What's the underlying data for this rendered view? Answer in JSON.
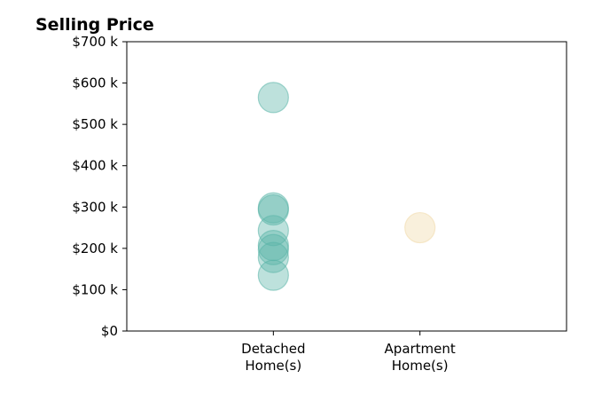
{
  "chart_data": {
    "type": "scatter",
    "title": "Selling Price",
    "xlabel": "",
    "ylabel": "",
    "categories": [
      {
        "label_lines": [
          "Detached",
          "Home(s)"
        ],
        "color": "#5ab4a8"
      },
      {
        "label_lines": [
          "Apartment",
          "Home(s)"
        ],
        "color": "#f0d9a8"
      }
    ],
    "x_range": [
      -1,
      2
    ],
    "ylim": [
      0,
      700000
    ],
    "y_ticks": [
      0,
      100000,
      200000,
      300000,
      400000,
      500000,
      600000,
      700000
    ],
    "y_tick_labels": [
      "$0",
      "$100 k",
      "$200 k",
      "$300 k",
      "$400 k",
      "$500 k",
      "$600 k",
      "$700 k"
    ],
    "grid": false,
    "points": [
      {
        "category": 0,
        "y": 565000
      },
      {
        "category": 0,
        "y": 298000
      },
      {
        "category": 0,
        "y": 293000
      },
      {
        "category": 0,
        "y": 243000
      },
      {
        "category": 0,
        "y": 207000
      },
      {
        "category": 0,
        "y": 197000
      },
      {
        "category": 0,
        "y": 178000
      },
      {
        "category": 0,
        "y": 135000
      },
      {
        "category": 1,
        "y": 250000
      }
    ]
  }
}
